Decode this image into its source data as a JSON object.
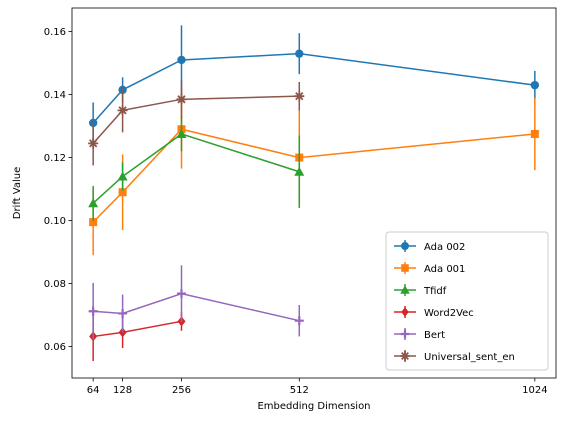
{
  "chart_data": {
    "type": "line",
    "xlabel": "Embedding Dimension",
    "ylabel": "Drift Value",
    "xlim": [
      18,
      1070
    ],
    "ylim": [
      0.05,
      0.1675
    ],
    "xticks": [
      64,
      128,
      256,
      512,
      1024
    ],
    "xtick_labels": [
      "64",
      "128",
      "256",
      "512",
      "1024"
    ],
    "yticks": [
      0.06,
      0.08,
      0.1,
      0.12,
      0.14,
      0.16
    ],
    "ytick_labels": [
      "0.06",
      "0.08",
      "0.10",
      "0.12",
      "0.14",
      "0.16"
    ],
    "grid": false,
    "legend_position": "lower-right",
    "series": [
      {
        "name": "Ada 002",
        "color": "#1f77b4",
        "marker": "circle",
        "points": [
          {
            "x": 64,
            "y": 0.131,
            "err": 0.0065
          },
          {
            "x": 128,
            "y": 0.1415,
            "err": 0.004
          },
          {
            "x": 256,
            "y": 0.151,
            "err": 0.011
          },
          {
            "x": 512,
            "y": 0.153,
            "err": 0.0065
          },
          {
            "x": 1024,
            "y": 0.143,
            "err": 0.0045
          }
        ]
      },
      {
        "name": "Ada 001",
        "color": "#ff7f0e",
        "marker": "square",
        "points": [
          {
            "x": 64,
            "y": 0.0995,
            "err": 0.0105
          },
          {
            "x": 128,
            "y": 0.109,
            "err": 0.012
          },
          {
            "x": 256,
            "y": 0.129,
            "err": 0.0125
          },
          {
            "x": 512,
            "y": 0.12,
            "err": 0.0155
          },
          {
            "x": 1024,
            "y": 0.1275,
            "err": 0.0115
          }
        ]
      },
      {
        "name": "Tfidf",
        "color": "#2ca02c",
        "marker": "triangle",
        "points": [
          {
            "x": 64,
            "y": 0.1055,
            "err": 0.0055
          },
          {
            "x": 128,
            "y": 0.114,
            "err": 0.0045
          },
          {
            "x": 256,
            "y": 0.1275,
            "err": 0.0055
          },
          {
            "x": 512,
            "y": 0.1155,
            "err": 0.0115
          }
        ]
      },
      {
        "name": "Word2Vec",
        "color": "#d62728",
        "marker": "diamond",
        "points": [
          {
            "x": 64,
            "y": 0.0632,
            "err": 0.0078
          },
          {
            "x": 128,
            "y": 0.0645,
            "err": 0.005
          },
          {
            "x": 256,
            "y": 0.068,
            "err": 0.003
          }
        ]
      },
      {
        "name": "Bert",
        "color": "#9467bd",
        "marker": "plus",
        "points": [
          {
            "x": 64,
            "y": 0.0712,
            "err": 0.009
          },
          {
            "x": 128,
            "y": 0.0705,
            "err": 0.006
          },
          {
            "x": 256,
            "y": 0.0768,
            "err": 0.009
          },
          {
            "x": 512,
            "y": 0.0682,
            "err": 0.005
          }
        ]
      },
      {
        "name": "Universal_sent_en",
        "color": "#8c564b",
        "marker": "star",
        "points": [
          {
            "x": 64,
            "y": 0.1245,
            "err": 0.007
          },
          {
            "x": 128,
            "y": 0.135,
            "err": 0.007
          },
          {
            "x": 256,
            "y": 0.1385,
            "err": 0.006
          },
          {
            "x": 512,
            "y": 0.1395,
            "err": 0.0045
          }
        ]
      }
    ]
  }
}
